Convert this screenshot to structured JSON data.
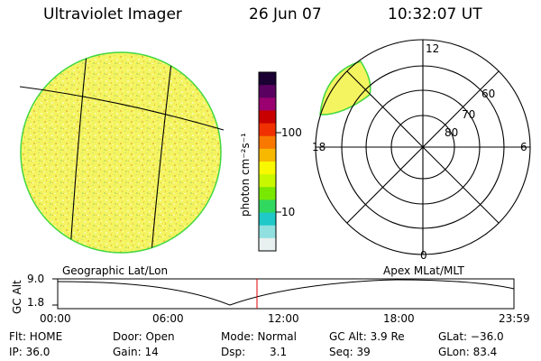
{
  "header": {
    "instrument": "Ultraviolet Imager",
    "date": "26 Jun 07",
    "time": "10:32:07 UT"
  },
  "colorbar": {
    "label": "photon cm⁻²s⁻¹",
    "tick_100": "100",
    "tick_10": "10",
    "colors": [
      "#1a0033",
      "#5a0060",
      "#9a0070",
      "#c80000",
      "#f03000",
      "#f87800",
      "#f8b800",
      "#f8f800",
      "#c8f800",
      "#78e800",
      "#30d860",
      "#20c8c8",
      "#90e0e0",
      "#e8f0f0"
    ]
  },
  "left_map": {
    "label": "Geographic Lat/Lon",
    "fill_color": "#f0f060",
    "rim_color": "#40d840"
  },
  "right_map": {
    "label": "Apex MLat/MLT",
    "mlt_top": "12",
    "mlt_left": "18",
    "mlt_right": "6",
    "mlt_bottom": "0",
    "lat_60": "60",
    "lat_70": "70",
    "lat_80": "80"
  },
  "altitude_plot": {
    "ylabel": "GC Alt",
    "ytick_top": "9.0",
    "ytick_bottom": "1.8",
    "xticks": [
      "00:00",
      "06:00",
      "12:00",
      "18:00",
      "23:59"
    ],
    "marker_color": "#e00000"
  },
  "status": {
    "flt": "Flt: HOME",
    "ip": "IP: 36.0",
    "door": "Door: Open",
    "gain": "Gain: 14",
    "mode": "Mode: Normal",
    "dsp_label": "Dsp:",
    "dsp_value": "3.1",
    "gc_alt": "GC Alt: 3.9 Re",
    "seq": "Seq: 39",
    "glat": "GLat: −36.0",
    "glon": "GLon:  83.4"
  }
}
